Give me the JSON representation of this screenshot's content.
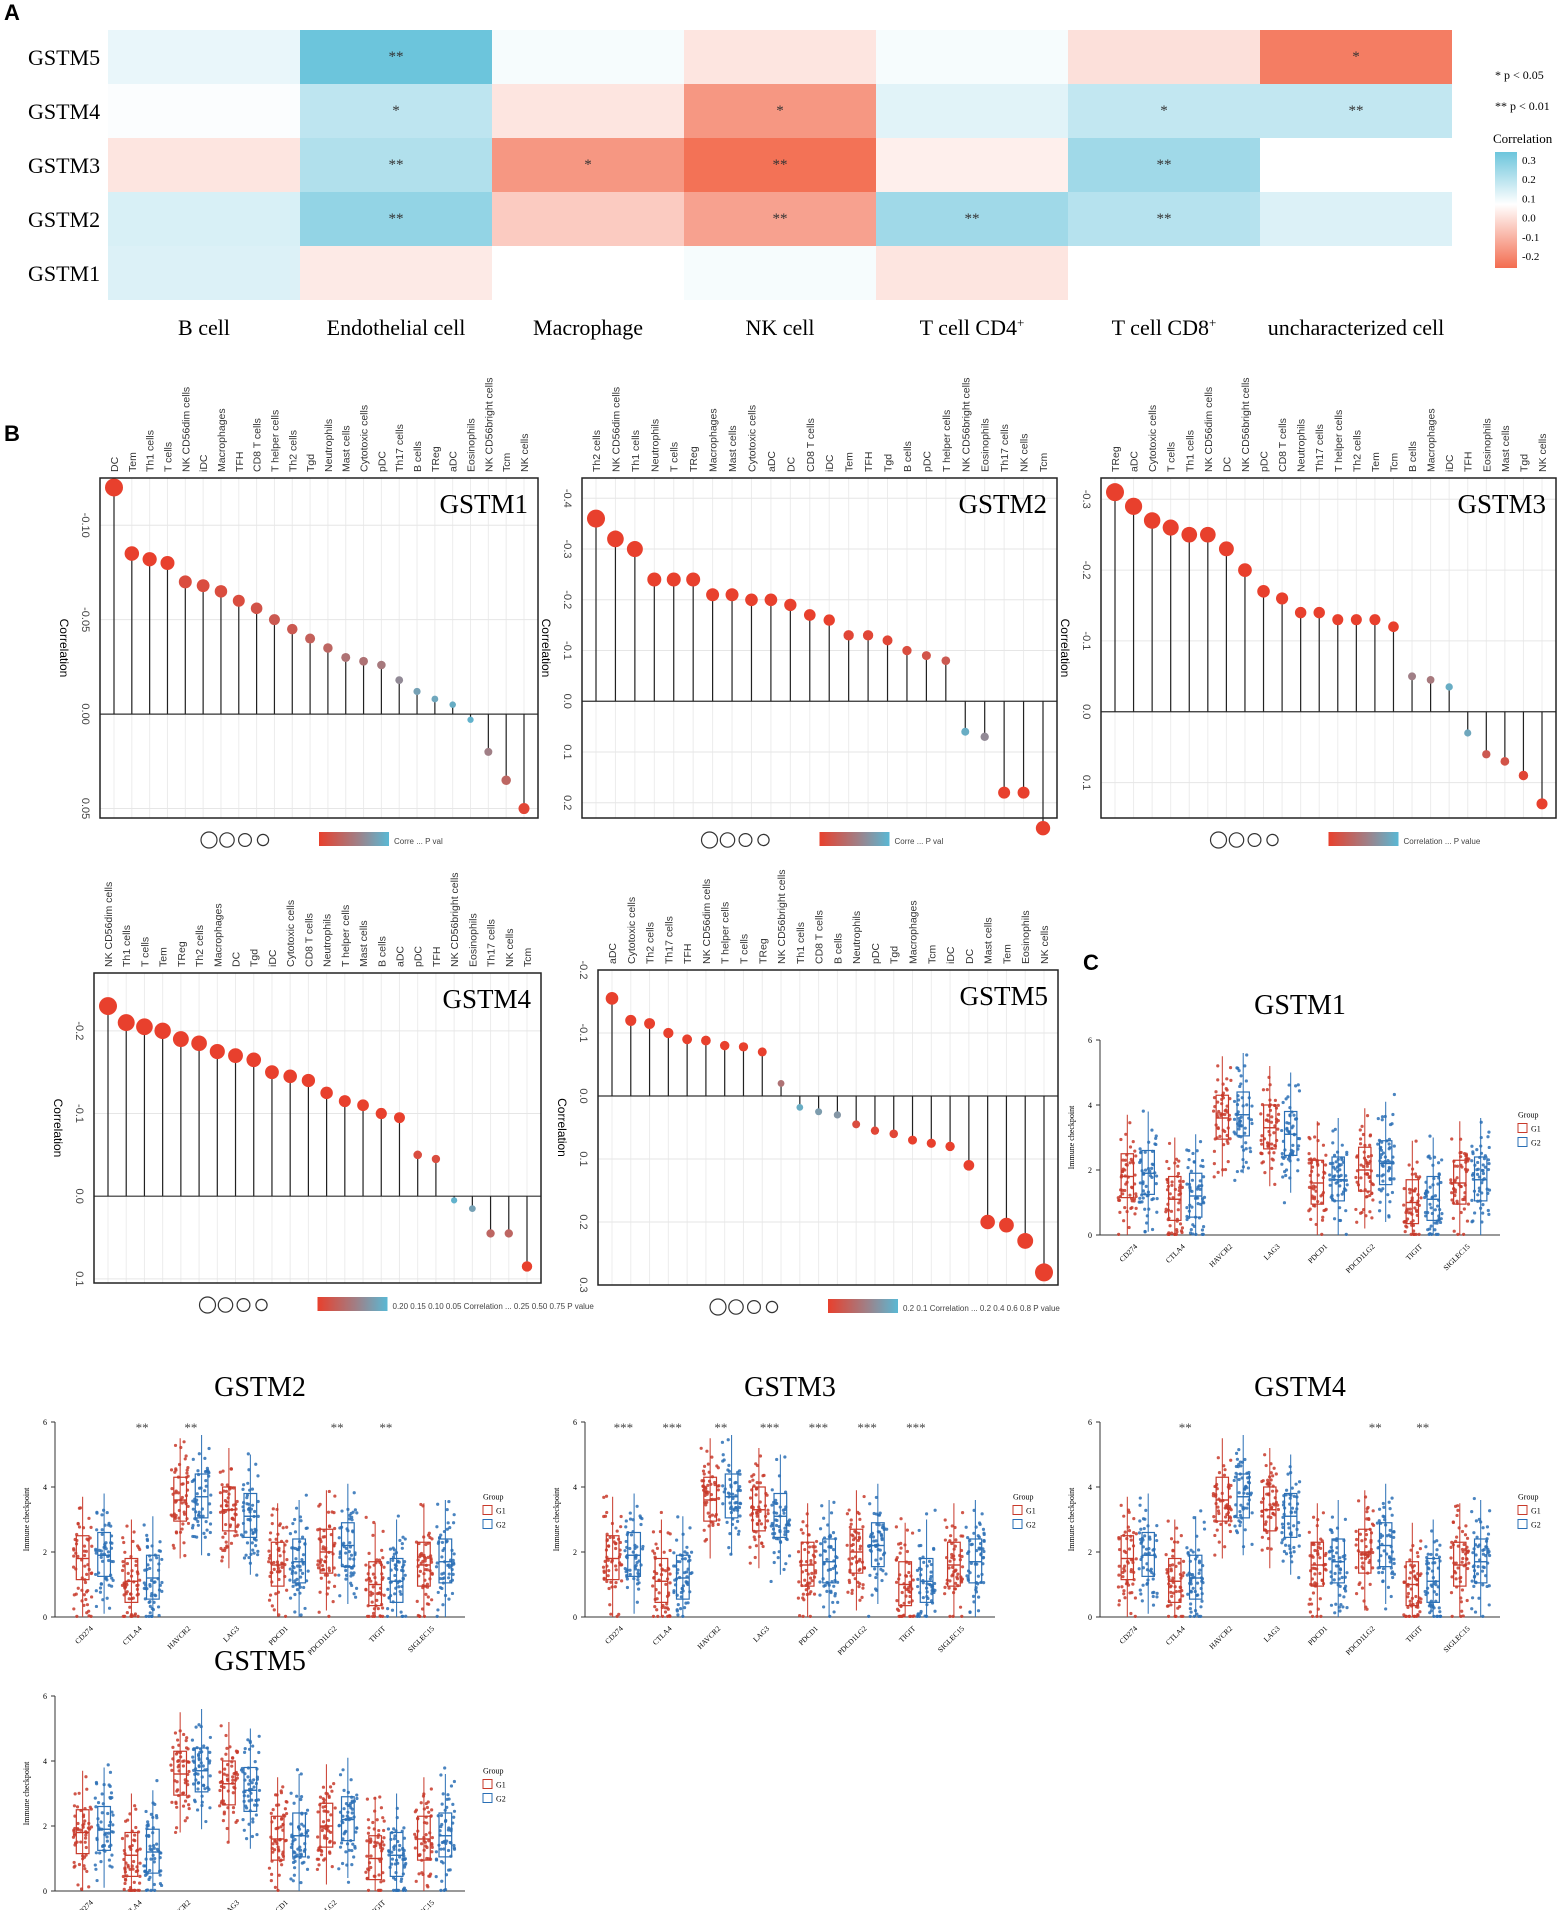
{
  "panel_labels": {
    "a": "A",
    "b": "B",
    "c": "C"
  },
  "chart_data": [
    {
      "id": "heatmap",
      "type": "heatmap",
      "rows": [
        "GSTM5",
        "GSTM4",
        "GSTM3",
        "GSTM2",
        "GSTM1"
      ],
      "columns": [
        "B cell",
        "Endothelial cell",
        "Macrophage",
        "NK cell",
        "T cell CD4+",
        "T cell CD8+",
        "uncharacterized cell"
      ],
      "values": [
        [
          0.05,
          0.34,
          0.02,
          -0.05,
          0.02,
          -0.06,
          -0.25
        ],
        [
          0.01,
          0.15,
          -0.05,
          -0.2,
          0.07,
          0.14,
          0.14
        ],
        [
          -0.05,
          0.18,
          -0.2,
          -0.27,
          -0.03,
          0.22,
          0.0
        ],
        [
          0.09,
          0.25,
          -0.1,
          -0.18,
          0.22,
          0.17,
          0.08
        ],
        [
          0.08,
          -0.04,
          0.0,
          0.02,
          -0.05,
          0.0,
          0.0
        ]
      ],
      "stars": [
        [
          "",
          "**",
          "",
          "",
          "",
          "",
          "*"
        ],
        [
          "",
          "*",
          "",
          "*",
          "",
          "*",
          "**"
        ],
        [
          "",
          "**",
          "*",
          "**",
          "",
          "**",
          ""
        ],
        [
          "",
          "**",
          "",
          "**",
          "**",
          "**",
          ""
        ],
        [
          "",
          "",
          "",
          "",
          "",
          "",
          ""
        ]
      ],
      "legend_title": "Correlation",
      "legend_ticks": [
        "0.3",
        "0.2",
        "0.1",
        "0.0",
        "-0.1",
        "-0.2"
      ],
      "significance": [
        "* p < 0.05",
        "** p < 0.01"
      ]
    },
    {
      "id": "lollipop-gstm1",
      "type": "lollipop",
      "title": "GSTM1",
      "ylabel": "Correlation",
      "ticks": [
        "-0.10",
        "-0.05",
        "0.00",
        "0.05"
      ],
      "ylim": [
        -0.125,
        0.055
      ],
      "legend_text": "Corre ... P val",
      "categories": [
        "DC",
        "Tem",
        "Th1 cells",
        "T cells",
        "NK CD56dim cells",
        "iDC",
        "Macrophages",
        "TFH",
        "CD8 T cells",
        "T helper cells",
        "Th2 cells",
        "Tgd",
        "Neutrophils",
        "Mast cells",
        "Cytotoxic cells",
        "pDC",
        "Th17 cells",
        "B cells",
        "TReg",
        "aDC",
        "Eosinophils",
        "NK CD56bright cells",
        "Tcm",
        "NK cells"
      ],
      "values": [
        -0.12,
        -0.085,
        -0.082,
        -0.08,
        -0.07,
        -0.068,
        -0.065,
        -0.06,
        -0.056,
        -0.05,
        -0.045,
        -0.04,
        -0.035,
        -0.03,
        -0.028,
        -0.026,
        -0.018,
        -0.012,
        -0.008,
        -0.005,
        0.003,
        0.02,
        0.035,
        0.05
      ],
      "pvalues": [
        0.0,
        0.0,
        0.0,
        0.0,
        0.1,
        0.1,
        0.1,
        0.1,
        0.15,
        0.2,
        0.2,
        0.25,
        0.3,
        0.4,
        0.4,
        0.45,
        0.6,
        0.8,
        0.85,
        0.9,
        0.95,
        0.5,
        0.3,
        0.05
      ]
    },
    {
      "id": "lollipop-gstm2",
      "type": "lollipop",
      "title": "GSTM2",
      "ylabel": "Correlation",
      "ticks": [
        "-0.4",
        "-0.3",
        "-0.2",
        "-0.1",
        "0.0",
        "0.1",
        "0.2"
      ],
      "ylim": [
        -0.44,
        0.23
      ],
      "legend_text": "Corre ... P val",
      "categories": [
        "Th2 cells",
        "NK CD56dim cells",
        "Th1 cells",
        "Neutrophils",
        "T cells",
        "TReg",
        "Macrophages",
        "Mast cells",
        "Cytotoxic cells",
        "aDC",
        "DC",
        "CD8 T cells",
        "iDC",
        "Tem",
        "TFH",
        "Tgd",
        "B cells",
        "pDC",
        "T helper cells",
        "NK CD56bright cells",
        "Eosinophils",
        "Th17 cells",
        "NK cells",
        "Tcm"
      ],
      "values": [
        -0.36,
        -0.32,
        -0.3,
        -0.24,
        -0.24,
        -0.24,
        -0.21,
        -0.21,
        -0.2,
        -0.2,
        -0.19,
        -0.17,
        -0.16,
        -0.13,
        -0.13,
        -0.12,
        -0.1,
        -0.09,
        -0.08,
        0.06,
        0.07,
        0.18,
        0.18,
        0.25
      ],
      "pvalues": [
        0.0,
        0.0,
        0.0,
        0.0,
        0.0,
        0.0,
        0.0,
        0.0,
        0.0,
        0.0,
        0.0,
        0.0,
        0.0,
        0.05,
        0.05,
        0.05,
        0.1,
        0.15,
        0.2,
        0.9,
        0.6,
        0.0,
        0.0,
        0.0
      ]
    },
    {
      "id": "lollipop-gstm3",
      "type": "lollipop",
      "title": "GSTM3",
      "ylabel": "Correlation",
      "ticks": [
        "-0.3",
        "-0.2",
        "-0.1",
        "0.0",
        "0.1"
      ],
      "ylim": [
        -0.33,
        0.15
      ],
      "legend_text": "Correlation ... P value",
      "categories": [
        "TReg",
        "aDC",
        "Cytotoxic cells",
        "T cells",
        "Th1 cells",
        "NK CD56dim cells",
        "DC",
        "NK CD56bright cells",
        "pDC",
        "CD8 T cells",
        "Neutrophils",
        "Th17 cells",
        "T helper cells",
        "Th2 cells",
        "Tem",
        "Tcm",
        "B cells",
        "Macrophages",
        "iDC",
        "TFH",
        "Eosinophils",
        "Mast cells",
        "Tgd",
        "NK cells"
      ],
      "values": [
        -0.31,
        -0.29,
        -0.27,
        -0.26,
        -0.25,
        -0.25,
        -0.23,
        -0.2,
        -0.17,
        -0.16,
        -0.14,
        -0.14,
        -0.13,
        -0.13,
        -0.13,
        -0.12,
        -0.05,
        -0.045,
        -0.035,
        0.03,
        0.06,
        0.07,
        0.09,
        0.13
      ],
      "pvalues": [
        0.0,
        0.0,
        0.0,
        0.0,
        0.0,
        0.0,
        0.0,
        0.0,
        0.0,
        0.0,
        0.0,
        0.0,
        0.0,
        0.0,
        0.0,
        0.0,
        0.5,
        0.45,
        0.9,
        0.85,
        0.2,
        0.15,
        0.05,
        0.0
      ]
    },
    {
      "id": "lollipop-gstm4",
      "type": "lollipop",
      "title": "GSTM4",
      "ylabel": "Correlation",
      "ticks": [
        "-0.2",
        "-0.1",
        "0.0",
        "0.1"
      ],
      "ylim": [
        -0.27,
        0.105
      ],
      "legend_text": "0.20 0.15 0.10 0.05 Correlation ... 0.25 0.50 0.75 P value",
      "categories": [
        "NK CD56dim cells",
        "Th1 cells",
        "T cells",
        "Tem",
        "TReg",
        "Th2 cells",
        "Macrophages",
        "DC",
        "Tgd",
        "iDC",
        "Cytotoxic cells",
        "CD8 T cells",
        "Neutrophils",
        "T helper cells",
        "Mast cells",
        "B cells",
        "aDC",
        "pDC",
        "TFH",
        "NK CD56bright cells",
        "Eosinophils",
        "Th17 cells",
        "NK cells",
        "Tcm"
      ],
      "values": [
        -0.23,
        -0.21,
        -0.205,
        -0.2,
        -0.19,
        -0.185,
        -0.175,
        -0.17,
        -0.165,
        -0.15,
        -0.145,
        -0.14,
        -0.125,
        -0.115,
        -0.11,
        -0.1,
        -0.095,
        -0.05,
        -0.045,
        0.005,
        0.015,
        0.045,
        0.045,
        0.085
      ],
      "pvalues": [
        0.0,
        0.0,
        0.0,
        0.0,
        0.0,
        0.0,
        0.0,
        0.0,
        0.0,
        0.0,
        0.0,
        0.0,
        0.0,
        0.0,
        0.0,
        0.0,
        0.0,
        0.1,
        0.1,
        0.95,
        0.8,
        0.3,
        0.3,
        0.0
      ]
    },
    {
      "id": "lollipop-gstm5",
      "type": "lollipop",
      "title": "GSTM5",
      "ylabel": "Correlation",
      "ticks": [
        "-0.2",
        "-0.1",
        "0.0",
        "0.1",
        "0.2",
        "0.3"
      ],
      "ylim": [
        -0.2,
        0.3
      ],
      "legend_text": "0.2 0.1 Correlation ... 0.2 0.4 0.6 0.8 P value",
      "categories": [
        "aDC",
        "Cytotoxic cells",
        "Th2 cells",
        "Th17 cells",
        "TFH",
        "NK CD56dim cells",
        "T helper cells",
        "T cells",
        "TReg",
        "NK CD56bright cells",
        "Th1 cells",
        "CD8 T cells",
        "B cells",
        "Neutrophils",
        "pDC",
        "Tgd",
        "Macrophages",
        "Tcm",
        "iDC",
        "DC",
        "Mast cells",
        "Tem",
        "Eosinophils",
        "NK cells"
      ],
      "values": [
        -0.155,
        -0.12,
        -0.115,
        -0.1,
        -0.09,
        -0.088,
        -0.08,
        -0.078,
        -0.07,
        -0.02,
        0.018,
        0.025,
        0.03,
        0.045,
        0.055,
        0.06,
        0.07,
        0.075,
        0.08,
        0.11,
        0.2,
        0.205,
        0.23,
        0.28
      ],
      "pvalues": [
        0.0,
        0.0,
        0.0,
        0.0,
        0.0,
        0.0,
        0.0,
        0.0,
        0.0,
        0.4,
        0.9,
        0.75,
        0.7,
        0.1,
        0.05,
        0.05,
        0.0,
        0.0,
        0.0,
        0.0,
        0.0,
        0.0,
        0.0,
        0.0
      ]
    },
    {
      "id": "boxplots",
      "type": "box",
      "ylabel": "Immune checkpoint",
      "categories": [
        "CD274",
        "CTLA4",
        "HAVCR2",
        "LAG3",
        "PDCD1",
        "PDCD1LG2",
        "TIGIT",
        "SIGLEC15"
      ],
      "legend_title": "Group",
      "groups": [
        "G1",
        "G2"
      ],
      "yticks": [
        "0",
        "2",
        "4",
        "6"
      ],
      "ylim": [
        0,
        6
      ],
      "medians_g1": [
        1.8,
        1.1,
        3.6,
        3.3,
        1.6,
        2.0,
        1.0,
        1.6
      ],
      "medians_g2": [
        1.9,
        1.2,
        3.7,
        3.1,
        1.7,
        2.2,
        1.1,
        1.7
      ],
      "panels": [
        {
          "title": "GSTM1",
          "stars": [
            "",
            "",
            "",
            "",
            "",
            "",
            "",
            ""
          ]
        },
        {
          "title": "GSTM2",
          "stars": [
            "",
            "**",
            "**",
            "",
            "",
            "**",
            "**",
            ""
          ]
        },
        {
          "title": "GSTM3",
          "stars": [
            "***",
            "***",
            "**",
            "***",
            "***",
            "***",
            "***",
            ""
          ]
        },
        {
          "title": "GSTM4",
          "stars": [
            "",
            "**",
            "",
            "",
            "",
            "**",
            "**",
            ""
          ]
        },
        {
          "title": "GSTM5",
          "stars": [
            "",
            "",
            "",
            "",
            "",
            "",
            "",
            ""
          ]
        }
      ]
    }
  ],
  "colors": {
    "pos": "#6cc5dc",
    "neg": "#f36d50",
    "sig_red": "#e8402d",
    "blue": "#5ab8d4",
    "g1": "#c8392a",
    "g2": "#2a6fb5"
  }
}
